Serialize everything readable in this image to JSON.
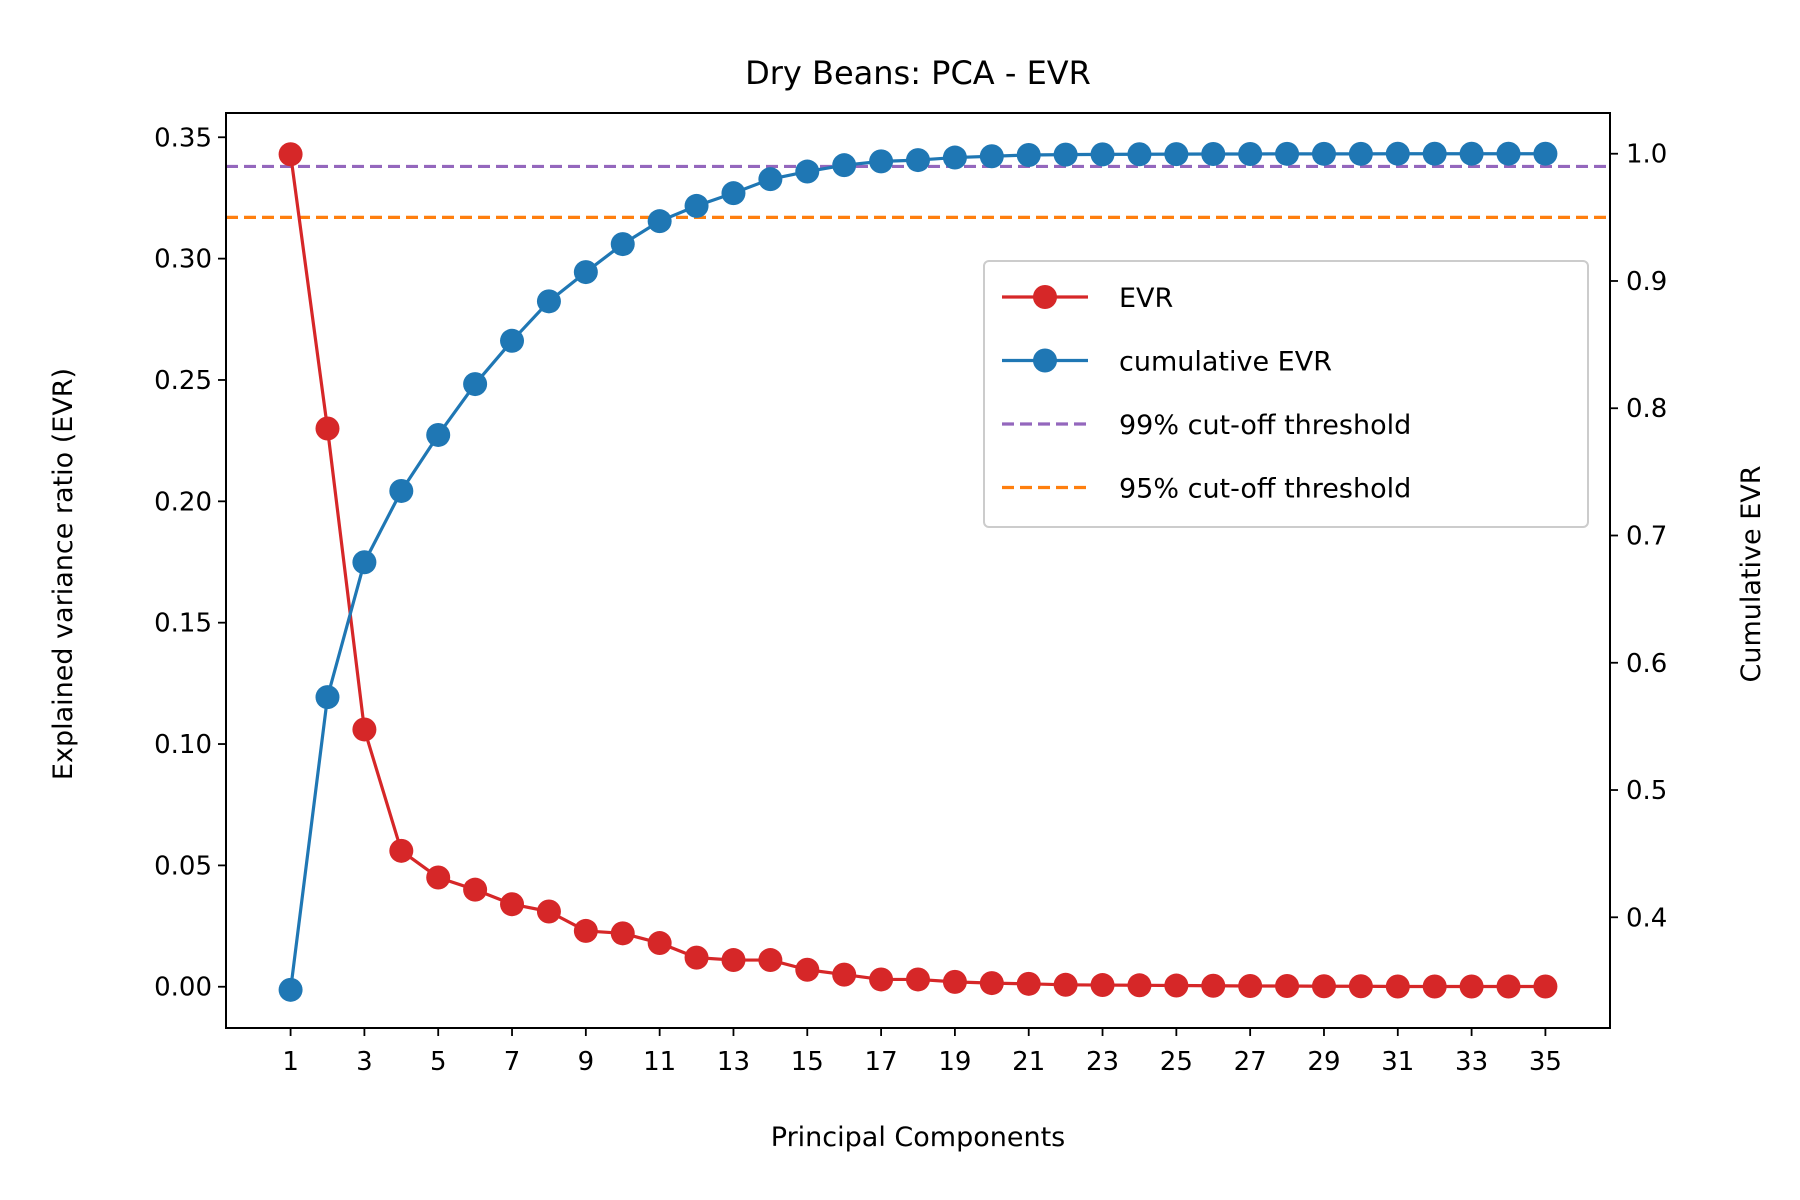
{
  "chart_data": {
    "type": "line",
    "title": "Dry Beans: PCA - EVR",
    "xlabel": "Principal Components",
    "ylabel": "Explained variance ratio (EVR)",
    "y2label": "Cumulative EVR",
    "x": [
      1,
      2,
      3,
      4,
      5,
      6,
      7,
      8,
      9,
      10,
      11,
      12,
      13,
      14,
      15,
      16,
      17,
      18,
      19,
      20,
      21,
      22,
      23,
      24,
      25,
      26,
      27,
      28,
      29,
      30,
      31,
      32,
      33,
      34,
      35
    ],
    "xticks": [
      1,
      3,
      5,
      7,
      9,
      11,
      13,
      15,
      17,
      19,
      21,
      23,
      25,
      27,
      29,
      31,
      33,
      35
    ],
    "xlim": [
      -0.75,
      36.75
    ],
    "ylim": [
      -0.017,
      0.36
    ],
    "yticks": [
      "0.00",
      "0.05",
      "0.10",
      "0.15",
      "0.20",
      "0.25",
      "0.30",
      "0.35"
    ],
    "y2lim": [
      0.313,
      1.032
    ],
    "y2ticks": [
      "0.4",
      "0.5",
      "0.6",
      "0.7",
      "0.8",
      "0.9",
      "1.0"
    ],
    "grid": false,
    "legend_position": "upper right",
    "series": [
      {
        "name": "EVR",
        "axis": "left",
        "color": "#d62728",
        "marker": "circle",
        "values": [
          0.343,
          0.23,
          0.106,
          0.056,
          0.045,
          0.04,
          0.034,
          0.031,
          0.023,
          0.022,
          0.018,
          0.012,
          0.011,
          0.011,
          0.007,
          0.005,
          0.003,
          0.003,
          0.002,
          0.0015,
          0.0012,
          0.0008,
          0.0007,
          0.0006,
          0.0005,
          0.0004,
          0.0003,
          0.0003,
          0.0002,
          0.0002,
          0.0001,
          0.0001,
          0.0001,
          0.0001,
          0.0001
        ]
      },
      {
        "name": "cumulative EVR",
        "axis": "right",
        "color": "#1f77b4",
        "marker": "circle",
        "values": [
          0.343,
          0.573,
          0.679,
          0.735,
          0.779,
          0.819,
          0.853,
          0.884,
          0.907,
          0.929,
          0.947,
          0.959,
          0.969,
          0.98,
          0.986,
          0.991,
          0.994,
          0.995,
          0.997,
          0.998,
          0.999,
          0.9993,
          0.9995,
          0.9996,
          0.9997,
          0.9998,
          0.9998,
          0.9999,
          0.9999,
          0.9999,
          1.0,
          1.0,
          1.0,
          1.0,
          1.0
        ]
      }
    ],
    "thresholds": [
      {
        "name": "99% cut-off threshold",
        "axis": "right",
        "value": 0.99,
        "color": "#9467bd",
        "style": "dashed"
      },
      {
        "name": "95% cut-off threshold",
        "axis": "right",
        "value": 0.95,
        "color": "#ff7f0e",
        "style": "dashed"
      }
    ]
  }
}
